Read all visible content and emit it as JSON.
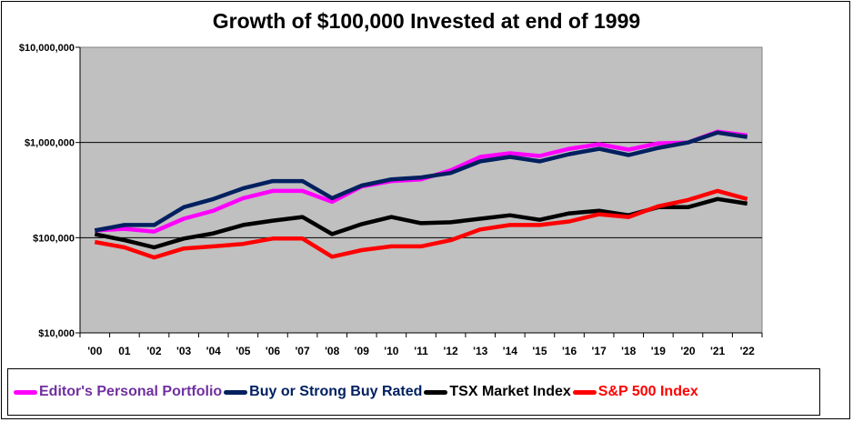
{
  "chart_data": {
    "type": "line",
    "title": "Growth of $100,000  Invested at end of 1999",
    "xlabel": "",
    "ylabel": "",
    "y_scale": "log",
    "ylim": [
      10000,
      10000000
    ],
    "y_ticks": [
      10000,
      100000,
      1000000,
      10000000
    ],
    "y_tick_labels": [
      "$10,000",
      "$100,000",
      "$1,000,000",
      "$10,000,000"
    ],
    "grid": "horizontal major lines",
    "plot_background": "#c0c0c0",
    "legend_placement": "bottom",
    "categories": [
      "'00",
      "01",
      "'02",
      "'03",
      "'04",
      "'05",
      "'06",
      "'07",
      "'08",
      "'09",
      "'10",
      "'11",
      "'12",
      "'13",
      "'14",
      "'15",
      "'16",
      "'17",
      "'18",
      "'19",
      "'20",
      "'21",
      "'22"
    ],
    "series": [
      {
        "name": "Editor's Personal Portfolio",
        "color": "#ff00ff",
        "label_color": "#7030a0",
        "values": [
          119000,
          124000,
          116000,
          158000,
          192000,
          260000,
          310000,
          310000,
          238000,
          345000,
          393000,
          410000,
          510000,
          706000,
          771000,
          721000,
          859000,
          958000,
          841000,
          980000,
          1000000,
          1300000,
          1190000
        ]
      },
      {
        "name": "Buy or Strong Buy Rated",
        "color": "#002060",
        "label_color": "#002060",
        "values": [
          119000,
          136000,
          136000,
          209000,
          255000,
          330000,
          393000,
          393000,
          260000,
          353000,
          410000,
          429000,
          478000,
          634000,
          706000,
          634000,
          754000,
          859000,
          738000,
          878000,
          1000000,
          1270000,
          1140000
        ]
      },
      {
        "name": "TSX Market Index",
        "color": "#000000",
        "label_color": "#000000",
        "values": [
          109000,
          94000,
          79000,
          98000,
          111000,
          136000,
          151000,
          165000,
          109000,
          139000,
          165000,
          142000,
          145000,
          158000,
          172000,
          154000,
          180000,
          192000,
          172000,
          209000,
          209000,
          255000,
          228000
        ]
      },
      {
        "name": "S&P 500 Index",
        "color": "#ff0000",
        "label_color": "#ff0000",
        "values": [
          90000,
          79000,
          62000,
          77000,
          81000,
          86000,
          98000,
          98000,
          63000,
          74000,
          81000,
          81000,
          94000,
          122000,
          136000,
          136000,
          148000,
          176000,
          165000,
          214000,
          249000,
          310000,
          255000
        ]
      }
    ]
  }
}
